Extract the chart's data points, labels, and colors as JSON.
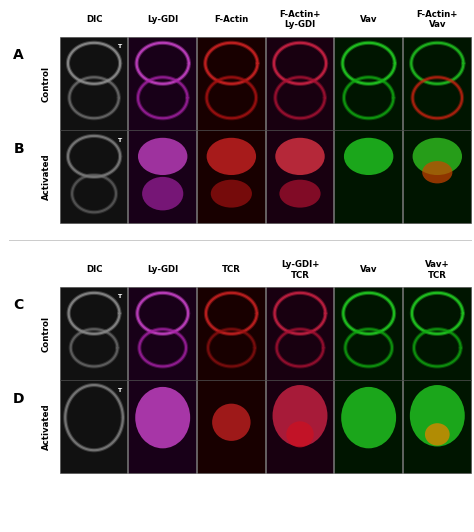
{
  "background_color": "#ffffff",
  "fig_width": 4.74,
  "fig_height": 5.32,
  "dpi": 100,
  "col_headers_top": [
    "DIC",
    "Ly-GDI",
    "F-Actin",
    "F-Actin+\nLy-GDI",
    "Vav",
    "F-Actin+\nVav"
  ],
  "col_headers_bot": [
    "DIC",
    "Ly-GDI",
    "TCR",
    "Ly-GDI+\nTCR",
    "Vav",
    "Vav+\nTCR"
  ],
  "row_labels": [
    "A",
    "B",
    "C",
    "D"
  ],
  "side_labels": [
    "Control",
    "Activated",
    "Control",
    "Activated"
  ],
  "dic_label": "T",
  "panel_bg_colors": [
    "#111111",
    "#180018",
    "#180000",
    "#180010",
    "#001500",
    "#001500"
  ]
}
